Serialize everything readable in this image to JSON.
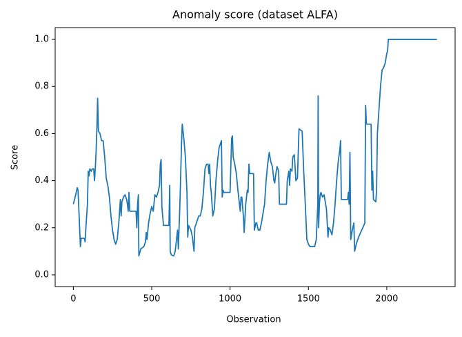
{
  "chart_data": {
    "type": "line",
    "title": "Anomaly score (dataset ALFA)",
    "xlabel": "Observation",
    "ylabel": "Score",
    "color": "#1f77b4",
    "grid": false,
    "xlim": [
      -116,
      2436
    ],
    "xticks": [
      0,
      500,
      1000,
      1500,
      2000
    ],
    "ylim": [
      -0.05,
      1.05
    ],
    "yticks": [
      {
        "value": 0,
        "label": "0.0"
      },
      0.2,
      0.4,
      0.6,
      0.8,
      {
        "value": 1,
        "label": "1.0"
      }
    ],
    "x": [
      0,
      15,
      25,
      30,
      40,
      45,
      50,
      70,
      75,
      80,
      90,
      95,
      100,
      105,
      115,
      120,
      130,
      135,
      140,
      145,
      150,
      155,
      160,
      170,
      180,
      190,
      200,
      210,
      220,
      230,
      240,
      250,
      260,
      270,
      280,
      290,
      300,
      305,
      310,
      320,
      330,
      340,
      345,
      350,
      355,
      360,
      380,
      400,
      405,
      410,
      415,
      418,
      430,
      450,
      460,
      465,
      470,
      480,
      490,
      500,
      510,
      520,
      530,
      540,
      550,
      555,
      560,
      565,
      570,
      575,
      600,
      610,
      615,
      618,
      625,
      640,
      650,
      660,
      665,
      670,
      680,
      690,
      695,
      705,
      715,
      725,
      730,
      735,
      750,
      760,
      770,
      775,
      790,
      800,
      810,
      820,
      830,
      840,
      850,
      860,
      865,
      870,
      875,
      880,
      890,
      900,
      910,
      920,
      930,
      940,
      945,
      950,
      955,
      960,
      1000,
      1010,
      1015,
      1020,
      1030,
      1040,
      1050,
      1060,
      1065,
      1070,
      1075,
      1085,
      1090,
      1100,
      1110,
      1115,
      1120,
      1125,
      1150,
      1155,
      1165,
      1170,
      1180,
      1190,
      1200,
      1220,
      1230,
      1240,
      1250,
      1260,
      1270,
      1280,
      1285,
      1290,
      1300,
      1310,
      1315,
      1360,
      1365,
      1375,
      1380,
      1385,
      1395,
      1400,
      1410,
      1420,
      1430,
      1440,
      1460,
      1470,
      1480,
      1490,
      1500,
      1510,
      1540,
      1550,
      1560,
      1562,
      1565,
      1570,
      1575,
      1580,
      1590,
      1600,
      1605,
      1610,
      1615,
      1620,
      1625,
      1630,
      1640,
      1650,
      1660,
      1670,
      1680,
      1690,
      1700,
      1705,
      1710,
      1750,
      1755,
      1760,
      1765,
      1770,
      1780,
      1790,
      1795,
      1805,
      1820,
      1840,
      1860,
      1865,
      1870,
      1900,
      1905,
      1910,
      1915,
      1930,
      1935,
      1940,
      1950,
      1960,
      1970,
      1980,
      1990,
      2000,
      2005,
      2010,
      2320
    ],
    "values": [
      0.3,
      0.34,
      0.37,
      0.36,
      0.2,
      0.12,
      0.155,
      0.155,
      0.14,
      0.2,
      0.3,
      0.44,
      0.42,
      0.45,
      0.44,
      0.45,
      0.45,
      0.4,
      0.45,
      0.52,
      0.62,
      0.75,
      0.61,
      0.6,
      0.57,
      0.57,
      0.5,
      0.41,
      0.38,
      0.33,
      0.25,
      0.19,
      0.15,
      0.13,
      0.15,
      0.22,
      0.32,
      0.25,
      0.31,
      0.33,
      0.34,
      0.32,
      0.3,
      0.27,
      0.35,
      0.27,
      0.27,
      0.27,
      0.2,
      0.3,
      0.34,
      0.08,
      0.11,
      0.12,
      0.14,
      0.18,
      0.15,
      0.22,
      0.26,
      0.29,
      0.27,
      0.34,
      0.33,
      0.35,
      0.38,
      0.47,
      0.49,
      0.29,
      0.25,
      0.21,
      0.21,
      0.21,
      0.38,
      0.1,
      0.085,
      0.08,
      0.1,
      0.16,
      0.19,
      0.11,
      0.3,
      0.55,
      0.64,
      0.58,
      0.5,
      0.35,
      0.16,
      0.21,
      0.19,
      0.16,
      0.1,
      0.2,
      0.23,
      0.25,
      0.25,
      0.28,
      0.35,
      0.45,
      0.47,
      0.47,
      0.43,
      0.47,
      0.38,
      0.35,
      0.25,
      0.28,
      0.4,
      0.48,
      0.54,
      0.56,
      0.57,
      0.33,
      0.36,
      0.35,
      0.35,
      0.58,
      0.59,
      0.5,
      0.47,
      0.43,
      0.36,
      0.3,
      0.27,
      0.33,
      0.33,
      0.25,
      0.18,
      0.3,
      0.36,
      0.35,
      0.47,
      0.43,
      0.43,
      0.19,
      0.22,
      0.22,
      0.19,
      0.19,
      0.22,
      0.3,
      0.4,
      0.47,
      0.52,
      0.48,
      0.46,
      0.4,
      0.39,
      0.42,
      0.46,
      0.44,
      0.3,
      0.3,
      0.4,
      0.44,
      0.38,
      0.45,
      0.44,
      0.5,
      0.51,
      0.4,
      0.41,
      0.62,
      0.61,
      0.44,
      0.3,
      0.15,
      0.13,
      0.12,
      0.12,
      0.15,
      0.3,
      0.76,
      0.2,
      0.3,
      0.34,
      0.35,
      0.33,
      0.34,
      0.32,
      0.3,
      0.28,
      0.22,
      0.16,
      0.2,
      0.19,
      0.17,
      0.22,
      0.3,
      0.4,
      0.48,
      0.53,
      0.57,
      0.32,
      0.32,
      0.35,
      0.3,
      0.52,
      0.15,
      0.19,
      0.22,
      0.1,
      0.13,
      0.16,
      0.19,
      0.22,
      0.72,
      0.64,
      0.64,
      0.36,
      0.44,
      0.32,
      0.31,
      0.36,
      0.6,
      0.7,
      0.8,
      0.87,
      0.88,
      0.9,
      0.94,
      0.95,
      1.0,
      1.0
    ]
  }
}
